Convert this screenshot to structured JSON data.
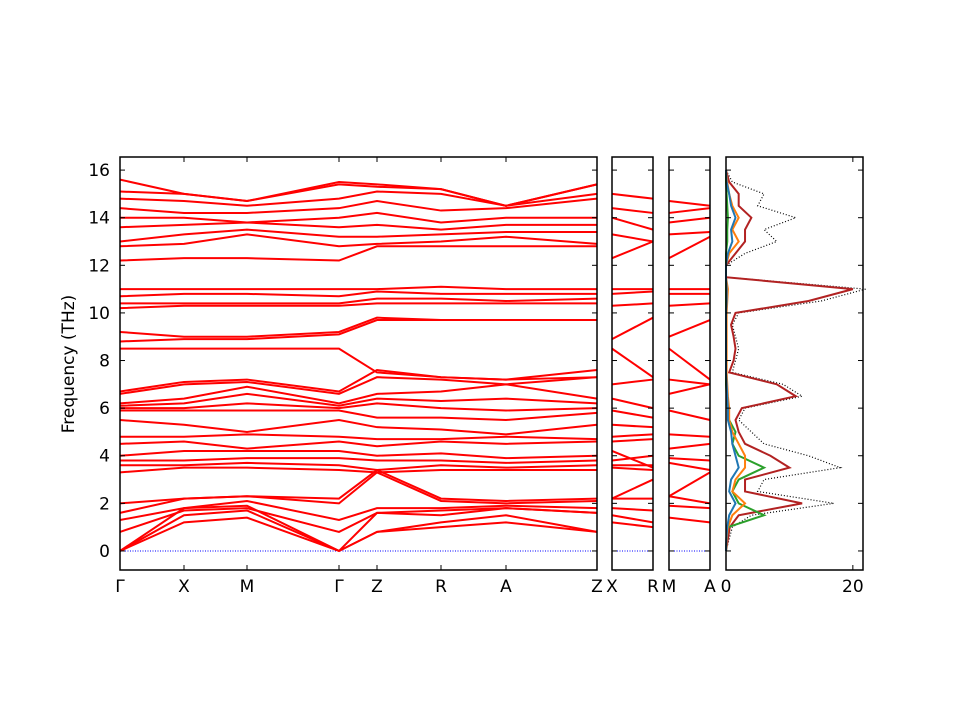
{
  "chart_data": [
    {
      "type": "line",
      "ylabel": "Frequency (THz)",
      "color": "#ff0000",
      "ylim": [
        -0.8,
        16.55
      ],
      "yticks": [
        0,
        2,
        4,
        6,
        8,
        10,
        12,
        14,
        16
      ],
      "xlim": [
        0,
        4.77
      ],
      "xticks": [
        {
          "value": 0,
          "label": "Γ"
        },
        {
          "value": 0.64,
          "label": "X"
        },
        {
          "value": 1.27,
          "label": "M"
        },
        {
          "value": 2.19,
          "label": "Γ"
        },
        {
          "value": 2.57,
          "label": "Z"
        },
        {
          "value": 3.21,
          "label": "R"
        },
        {
          "value": 3.86,
          "label": "A"
        },
        {
          "value": 4.77,
          "label": "Z"
        }
      ],
      "reference_line": {
        "value": 0,
        "color": "#0000ff"
      },
      "series": [
        {
          "values": [
            0,
            1.2,
            1.4,
            0,
            0.8,
            1.0,
            1.2,
            0.8
          ]
        },
        {
          "values": [
            0,
            1.5,
            1.7,
            0,
            0.8,
            1.2,
            1.5,
            0.8
          ]
        },
        {
          "values": [
            0,
            1.8,
            1.9,
            0,
            1.6,
            1.7,
            1.8,
            1.6
          ]
        },
        {
          "values": [
            0.8,
            1.7,
            1.8,
            0.8,
            1.6,
            1.5,
            1.8,
            1.6
          ]
        },
        {
          "values": [
            1.3,
            1.8,
            2.1,
            1.3,
            1.8,
            1.8,
            1.9,
            1.8
          ]
        },
        {
          "values": [
            1.6,
            2.2,
            2.3,
            2.0,
            3.3,
            2.1,
            2.0,
            2.1
          ]
        },
        {
          "values": [
            2.0,
            2.2,
            2.3,
            2.2,
            3.4,
            2.2,
            2.1,
            2.2
          ]
        },
        {
          "values": [
            3.3,
            3.5,
            3.5,
            3.4,
            3.3,
            3.4,
            3.4,
            3.4
          ]
        },
        {
          "values": [
            3.6,
            3.6,
            3.7,
            3.6,
            3.4,
            3.6,
            3.5,
            3.6
          ]
        },
        {
          "values": [
            3.8,
            3.8,
            3.9,
            3.9,
            3.8,
            3.8,
            3.7,
            3.8
          ]
        },
        {
          "values": [
            4.0,
            4.2,
            4.2,
            4.2,
            4.0,
            4.1,
            3.9,
            4.0
          ]
        },
        {
          "values": [
            4.5,
            4.6,
            4.3,
            4.6,
            4.4,
            4.6,
            4.5,
            4.6
          ]
        },
        {
          "values": [
            4.8,
            4.8,
            4.9,
            4.8,
            4.7,
            4.7,
            4.8,
            4.7
          ]
        },
        {
          "values": [
            5.5,
            5.3,
            5.0,
            5.5,
            5.2,
            5.1,
            4.9,
            5.3
          ]
        },
        {
          "values": [
            5.9,
            5.9,
            5.9,
            5.9,
            5.6,
            5.6,
            5.5,
            5.8
          ]
        },
        {
          "values": [
            6.0,
            6.0,
            6.2,
            6.0,
            6.2,
            6.0,
            5.9,
            6.0
          ]
        },
        {
          "values": [
            6.1,
            6.2,
            6.6,
            6.1,
            6.4,
            6.3,
            6.4,
            6.2
          ]
        },
        {
          "values": [
            6.2,
            6.4,
            6.9,
            6.2,
            6.6,
            6.7,
            7.0,
            6.4
          ]
        },
        {
          "values": [
            6.6,
            7.0,
            7.1,
            6.6,
            7.3,
            7.2,
            7.0,
            7.3
          ]
        },
        {
          "values": [
            6.7,
            7.1,
            7.2,
            6.7,
            7.6,
            7.3,
            7.2,
            7.6
          ]
        },
        {
          "values": [
            8.5,
            8.5,
            8.5,
            8.5,
            7.5,
            7.3,
            7.2,
            7.3
          ]
        },
        {
          "values": [
            8.8,
            8.9,
            8.9,
            9.1,
            9.7,
            9.7,
            9.7,
            9.7
          ]
        },
        {
          "values": [
            9.2,
            9.0,
            9.0,
            9.2,
            9.8,
            9.7,
            9.7,
            9.7
          ]
        },
        {
          "values": [
            10.2,
            10.3,
            10.3,
            10.3,
            10.4,
            10.4,
            10.4,
            10.4
          ]
        },
        {
          "values": [
            10.4,
            10.4,
            10.4,
            10.4,
            10.6,
            10.6,
            10.5,
            10.6
          ]
        },
        {
          "values": [
            10.7,
            10.8,
            10.8,
            10.7,
            10.9,
            10.8,
            10.8,
            10.8
          ]
        },
        {
          "values": [
            11.0,
            11.0,
            11.0,
            11.0,
            11.0,
            11.1,
            11.0,
            11.0
          ]
        },
        {
          "values": [
            12.2,
            12.3,
            12.3,
            12.2,
            12.8,
            12.8,
            12.8,
            12.8
          ]
        },
        {
          "values": [
            12.8,
            12.9,
            13.3,
            12.8,
            12.9,
            13.0,
            13.2,
            12.9
          ]
        },
        {
          "values": [
            13.0,
            13.3,
            13.5,
            13.2,
            13.2,
            13.3,
            13.4,
            13.4
          ]
        },
        {
          "values": [
            13.6,
            13.7,
            13.8,
            13.6,
            13.7,
            13.5,
            13.7,
            13.7
          ]
        },
        {
          "values": [
            14.0,
            14.0,
            13.8,
            14.0,
            14.2,
            13.8,
            14.0,
            14.0
          ]
        },
        {
          "values": [
            14.4,
            14.2,
            14.2,
            14.4,
            14.7,
            14.3,
            14.4,
            14.8
          ]
        },
        {
          "values": [
            14.8,
            14.7,
            14.5,
            14.8,
            15.1,
            15.0,
            14.5,
            15.0
          ]
        },
        {
          "values": [
            15.1,
            15.0,
            14.7,
            15.4,
            15.3,
            15.2,
            14.5,
            15.4
          ]
        },
        {
          "values": [
            15.6,
            15.0,
            14.7,
            15.5,
            15.4,
            15.2,
            14.5,
            15.4
          ]
        }
      ]
    },
    {
      "type": "line",
      "color": "#ff0000",
      "xlim": [
        0,
        1
      ],
      "xticks": [
        {
          "value": 0,
          "label": "X"
        },
        {
          "value": 1,
          "label": "R"
        }
      ],
      "reference_line": {
        "value": 0,
        "color": "#0000ff"
      },
      "series": [
        {
          "values": [
            1.2,
            1.0
          ]
        },
        {
          "values": [
            1.5,
            1.2
          ]
        },
        {
          "values": [
            1.8,
            1.7
          ]
        },
        {
          "values": [
            2.2,
            3.0
          ]
        },
        {
          "values": [
            2.2,
            2.2
          ]
        },
        {
          "values": [
            3.5,
            3.4
          ]
        },
        {
          "values": [
            3.6,
            3.6
          ]
        },
        {
          "values": [
            3.8,
            4.0
          ]
        },
        {
          "values": [
            4.2,
            3.5
          ]
        },
        {
          "values": [
            4.6,
            4.7
          ]
        },
        {
          "values": [
            4.8,
            4.9
          ]
        },
        {
          "values": [
            5.3,
            5.2
          ]
        },
        {
          "values": [
            5.9,
            5.6
          ]
        },
        {
          "values": [
            6.4,
            6.0
          ]
        },
        {
          "values": [
            7.0,
            7.2
          ]
        },
        {
          "values": [
            8.5,
            7.3
          ]
        },
        {
          "values": [
            8.9,
            9.8
          ]
        },
        {
          "values": [
            10.3,
            10.4
          ]
        },
        {
          "values": [
            10.8,
            10.9
          ]
        },
        {
          "values": [
            11.0,
            11.0
          ]
        },
        {
          "values": [
            12.3,
            13.0
          ]
        },
        {
          "values": [
            13.3,
            13.0
          ]
        },
        {
          "values": [
            14.0,
            13.5
          ]
        },
        {
          "values": [
            14.4,
            14.2
          ]
        },
        {
          "values": [
            15.0,
            14.8
          ]
        }
      ]
    },
    {
      "type": "line",
      "color": "#ff0000",
      "xlim": [
        0,
        1
      ],
      "xticks": [
        {
          "value": 0,
          "label": "M"
        },
        {
          "value": 1,
          "label": "A"
        }
      ],
      "reference_line": {
        "value": 0,
        "color": "#0000ff"
      },
      "series": [
        {
          "values": [
            1.4,
            1.2
          ]
        },
        {
          "values": [
            1.9,
            1.8
          ]
        },
        {
          "values": [
            2.3,
            2.0
          ]
        },
        {
          "values": [
            2.3,
            3.3
          ]
        },
        {
          "values": [
            3.7,
            3.4
          ]
        },
        {
          "values": [
            3.9,
            3.8
          ]
        },
        {
          "values": [
            4.3,
            4.5
          ]
        },
        {
          "values": [
            4.9,
            4.8
          ]
        },
        {
          "values": [
            5.9,
            5.5
          ]
        },
        {
          "values": [
            6.6,
            7.0
          ]
        },
        {
          "values": [
            7.2,
            7.0
          ]
        },
        {
          "values": [
            8.5,
            7.2
          ]
        },
        {
          "values": [
            9.0,
            9.7
          ]
        },
        {
          "values": [
            10.3,
            10.4
          ]
        },
        {
          "values": [
            10.8,
            10.8
          ]
        },
        {
          "values": [
            11.0,
            11.0
          ]
        },
        {
          "values": [
            12.3,
            13.2
          ]
        },
        {
          "values": [
            13.3,
            13.4
          ]
        },
        {
          "values": [
            13.8,
            14.0
          ]
        },
        {
          "values": [
            14.2,
            14.4
          ]
        },
        {
          "values": [
            14.7,
            14.5
          ]
        }
      ]
    },
    {
      "type": "dos",
      "xlim": [
        0,
        21.6
      ],
      "xticks": [
        0,
        20
      ],
      "frequencies": [
        0,
        0.5,
        1,
        1.5,
        2,
        2.5,
        3,
        3.5,
        4,
        4.5,
        5,
        5.5,
        6,
        6.5,
        7,
        7.5,
        8,
        8.5,
        9,
        9.5,
        10,
        10.5,
        11,
        11.5,
        12,
        12.5,
        13,
        13.5,
        14,
        14.5,
        15,
        15.5,
        16
      ],
      "series": [
        {
          "color": "#000000",
          "linestyle": "dotted",
          "values": [
            0,
            0.5,
            1,
            4,
            17,
            5,
            6,
            18,
            13,
            6,
            4,
            2,
            3,
            12,
            9,
            1,
            1.5,
            2,
            1.5,
            1,
            2,
            15,
            22,
            0,
            0,
            3,
            8,
            6,
            11,
            5,
            6,
            1,
            0
          ]
        },
        {
          "color": "#b22222",
          "linestyle": "solid",
          "values": [
            0,
            0.3,
            0.6,
            2,
            12,
            3,
            3,
            10,
            7,
            3,
            2,
            1.5,
            2.5,
            11,
            8,
            0.5,
            1.2,
            1.5,
            1.2,
            0.8,
            1.5,
            13,
            20,
            0,
            0,
            1.5,
            3,
            3,
            4,
            2,
            2,
            0.5,
            0
          ]
        },
        {
          "color": "#2ca02c",
          "linestyle": "solid",
          "values": [
            0,
            0.1,
            0.3,
            6,
            2,
            1,
            2,
            6,
            2,
            1,
            1.5,
            0.5,
            0.3,
            0.1,
            0,
            0,
            0,
            0,
            0,
            0,
            0,
            0,
            0,
            0,
            0,
            0,
            0.2,
            0.2,
            0.3,
            0.2,
            0.1,
            0,
            0
          ]
        },
        {
          "color": "#ff7f0e",
          "linestyle": "solid",
          "values": [
            0,
            0.1,
            0.3,
            1,
            3,
            1,
            1.5,
            3,
            3,
            2,
            1,
            0.5,
            0.5,
            0.3,
            0.2,
            0.1,
            0.1,
            0.1,
            0.1,
            0.1,
            0.1,
            0.2,
            0.3,
            0,
            0,
            0.5,
            2,
            1,
            2,
            1,
            0.5,
            0.2,
            0
          ]
        },
        {
          "color": "#1f77b4",
          "linestyle": "solid",
          "values": [
            0,
            0.05,
            0.2,
            0.5,
            1.5,
            0.5,
            0.8,
            2,
            1.5,
            1,
            0.8,
            0.3,
            0.3,
            0.2,
            0.1,
            0,
            0,
            0,
            0,
            0,
            0,
            0.1,
            0.1,
            0,
            0,
            0.3,
            1,
            0.8,
            1.5,
            0.8,
            0.5,
            0.1,
            0
          ]
        }
      ]
    }
  ]
}
